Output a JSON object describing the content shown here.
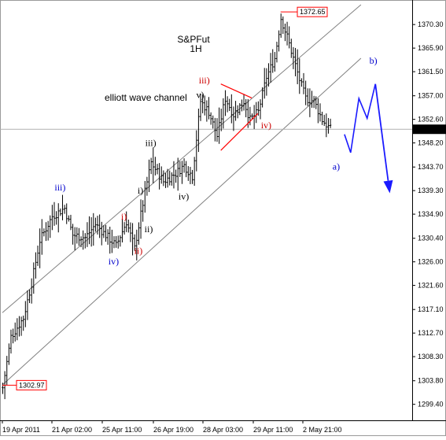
{
  "chart_data": {
    "type": "ohlc",
    "title": "S&PFut",
    "subtitle": "1H",
    "channel_label": "elliott wave channel",
    "price_axis": {
      "min": 1297.0,
      "max": 1374.0,
      "ticks": [
        "1370.30",
        "1365.90",
        "1361.50",
        "1357.00",
        "1352.60",
        "1348.20",
        "1343.70",
        "1339.30",
        "1334.90",
        "1330.40",
        "1326.00",
        "1321.60",
        "1317.10",
        "1312.70",
        "1308.30",
        "1303.80",
        "1299.40"
      ]
    },
    "time_axis": {
      "labels": [
        "19 Apr 2011",
        "21 Apr 02:00",
        "25 Apr 11:00",
        "26 Apr 19:00",
        "28 Apr 03:00",
        "29 Apr 11:00",
        "2 May 21:00"
      ],
      "bar_count": 160
    },
    "current_price": "1350.75",
    "high_marker": "1372.65",
    "low_marker": "1302.97",
    "colors": {
      "background": "#ffffff",
      "bars": "#000000",
      "channel": "#808080",
      "current_line": "#b0b0b0",
      "current_label_bg": "#000000",
      "marker": "#ff0000",
      "wave_black": "#000000",
      "wave_red": "#cc0000",
      "wave_blue": "#0000cc",
      "projection": "#1a1aff"
    },
    "price_path": [
      {
        "bar": 0,
        "price": 1302.5
      },
      {
        "bar": 4,
        "price": 1312.0
      },
      {
        "bar": 10,
        "price": 1315.5
      },
      {
        "bar": 14,
        "price": 1322.0
      },
      {
        "bar": 18,
        "price": 1330.0
      },
      {
        "bar": 24,
        "price": 1334.5
      },
      {
        "bar": 30,
        "price": 1336.0
      },
      {
        "bar": 34,
        "price": 1331.0
      },
      {
        "bar": 40,
        "price": 1330.5
      },
      {
        "bar": 45,
        "price": 1333.0
      },
      {
        "bar": 50,
        "price": 1331.0
      },
      {
        "bar": 55,
        "price": 1329.0
      },
      {
        "bar": 60,
        "price": 1333.5
      },
      {
        "bar": 64,
        "price": 1328.5
      },
      {
        "bar": 69,
        "price": 1339.0
      },
      {
        "bar": 72,
        "price": 1344.5
      },
      {
        "bar": 78,
        "price": 1341.0
      },
      {
        "bar": 84,
        "price": 1342.5
      },
      {
        "bar": 88,
        "price": 1344.0
      },
      {
        "bar": 92,
        "price": 1342.0
      },
      {
        "bar": 96,
        "price": 1356.0
      },
      {
        "bar": 100,
        "price": 1354.0
      },
      {
        "bar": 104,
        "price": 1349.5
      },
      {
        "bar": 108,
        "price": 1356.5
      },
      {
        "bar": 112,
        "price": 1353.5
      },
      {
        "bar": 117,
        "price": 1356.0
      },
      {
        "bar": 120,
        "price": 1352.5
      },
      {
        "bar": 124,
        "price": 1354.0
      },
      {
        "bar": 128,
        "price": 1360.5
      },
      {
        "bar": 132,
        "price": 1364.0
      },
      {
        "bar": 135,
        "price": 1371.5
      },
      {
        "bar": 138,
        "price": 1368.0
      },
      {
        "bar": 141,
        "price": 1364.0
      },
      {
        "bar": 144,
        "price": 1360.0
      },
      {
        "bar": 147,
        "price": 1356.5
      },
      {
        "bar": 151,
        "price": 1356.0
      },
      {
        "bar": 155,
        "price": 1352.5
      },
      {
        "bar": 159,
        "price": 1350.75
      }
    ],
    "channel_lines": [
      {
        "from": {
          "bar": 0,
          "price": 1316.5
        },
        "to": {
          "bar": 174,
          "price": 1374.0
        }
      },
      {
        "from": {
          "bar": 0,
          "price": 1303.0
        },
        "to": {
          "bar": 174,
          "price": 1364.0
        }
      }
    ],
    "red_lines": [
      {
        "from": {
          "bar": 106,
          "price": 1359.2
        },
        "to": {
          "bar": 121,
          "price": 1356.6
        }
      },
      {
        "from": {
          "bar": 106,
          "price": 1346.8
        },
        "to": {
          "bar": 124,
          "price": 1353.7
        }
      }
    ],
    "projection": {
      "path": [
        {
          "bar": 166,
          "price": 1349.8
        },
        {
          "bar": 169,
          "price": 1346.4
        },
        {
          "bar": 173,
          "price": 1356.5
        },
        {
          "bar": 177,
          "price": 1352.8
        },
        {
          "bar": 181,
          "price": 1359.2
        }
      ],
      "arrow_to": {
        "bar": 188,
        "price": 1338.8
      }
    },
    "wave_labels": [
      {
        "text": "iii)",
        "color": "blue",
        "bar": 28,
        "price": 1339.3
      },
      {
        "text": "iv)",
        "color": "blue",
        "bar": 54,
        "price": 1325.5
      },
      {
        "text": "i)",
        "color": "red",
        "bar": 59,
        "price": 1333.9
      },
      {
        "text": "ii)",
        "color": "red",
        "bar": 66,
        "price": 1327.5
      },
      {
        "text": "i)",
        "color": "black",
        "bar": 67,
        "price": 1338.7
      },
      {
        "text": "ii)",
        "color": "black",
        "bar": 71,
        "price": 1331.5
      },
      {
        "text": "iii)",
        "color": "black",
        "bar": 72,
        "price": 1347.6
      },
      {
        "text": "iv)",
        "color": "black",
        "bar": 88,
        "price": 1337.6
      },
      {
        "text": "v)",
        "color": "black",
        "bar": 96,
        "price": 1356.6
      },
      {
        "text": "iii)",
        "color": "red",
        "bar": 98,
        "price": 1359.3
      },
      {
        "text": "iv)",
        "color": "red",
        "bar": 128,
        "price": 1350.9
      },
      {
        "text": "a)",
        "color": "blue",
        "bar": 162,
        "price": 1343.2
      },
      {
        "text": "b)",
        "color": "blue",
        "bar": 180,
        "price": 1363.0
      }
    ]
  }
}
